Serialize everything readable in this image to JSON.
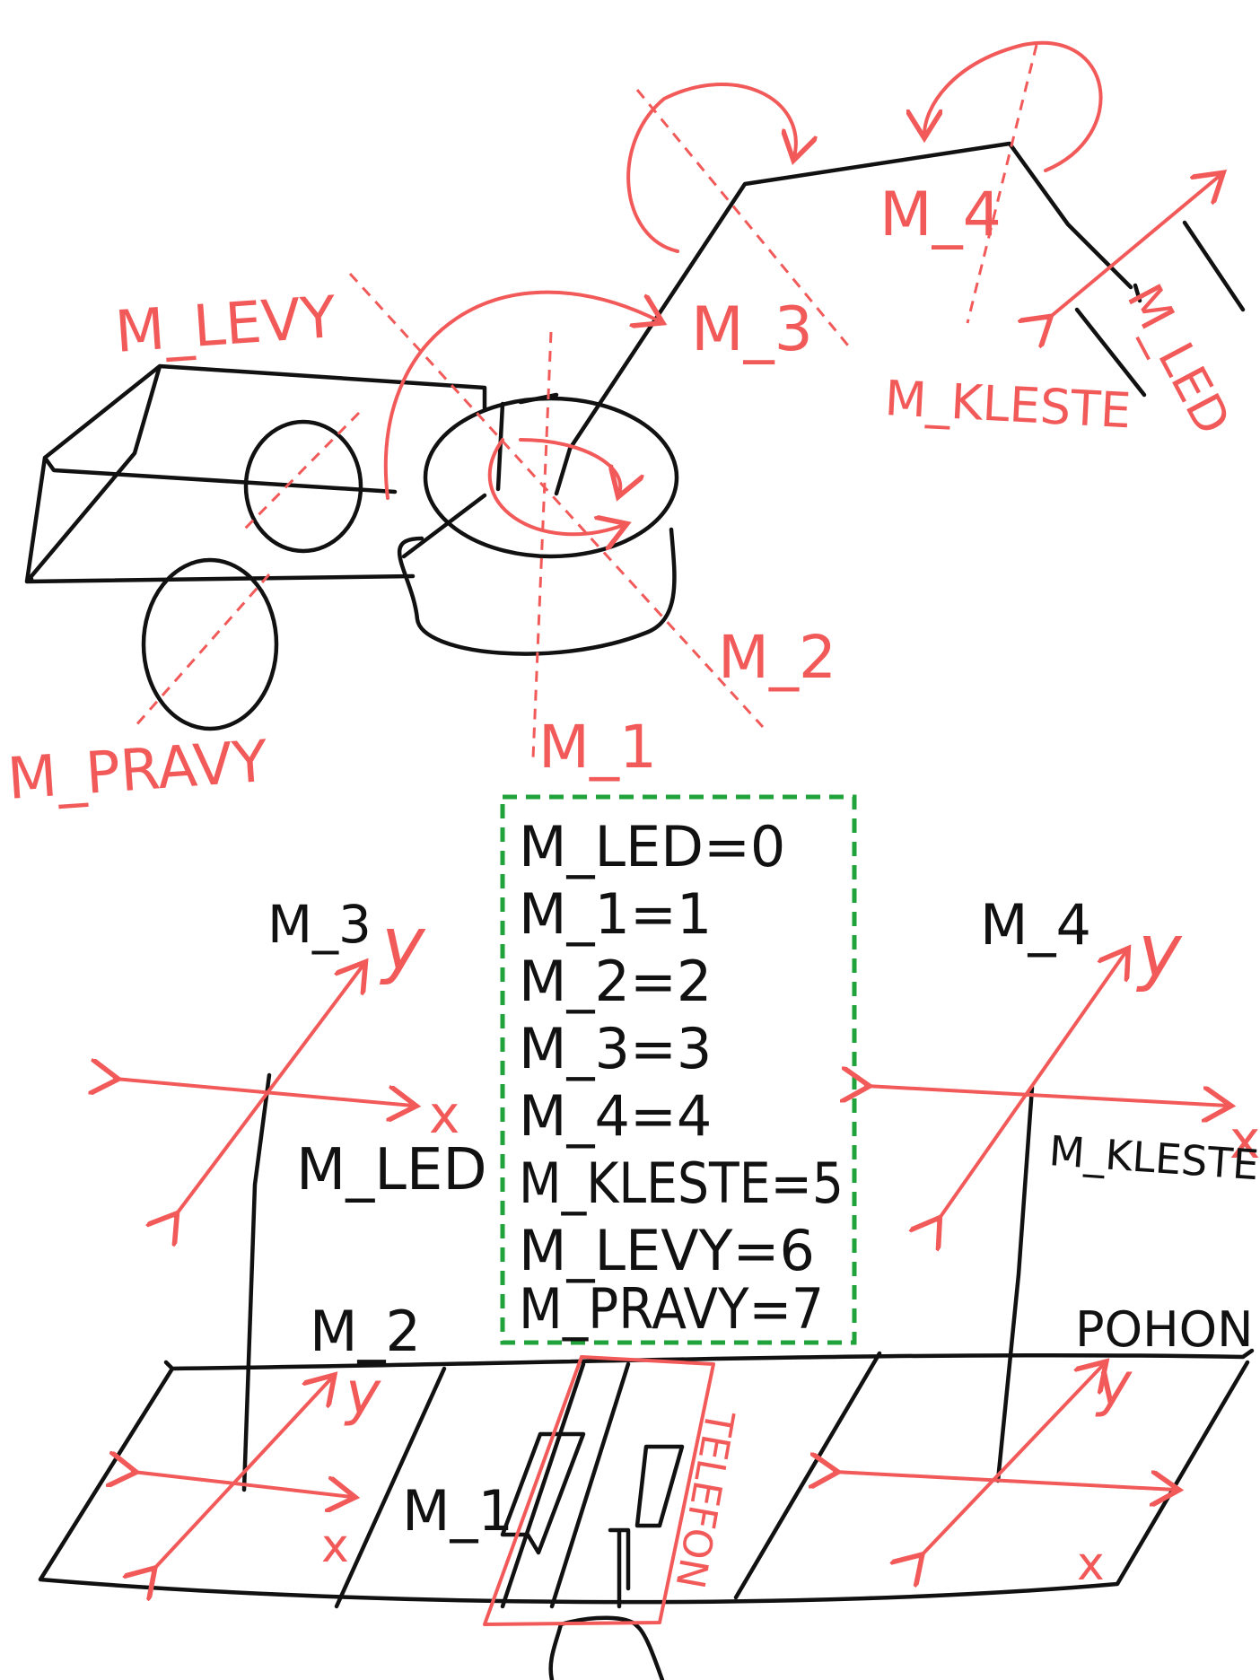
{
  "colors": {
    "ink": "#111111",
    "red": "#f25a5a",
    "green": "#1fa33a"
  },
  "robot_labels": {
    "m_levy": "M_LEVY",
    "m_pravy": "M_PRAVY",
    "m_1": "M_1",
    "m_2": "M_2",
    "m_3": "M_3",
    "m_4": "M_4",
    "m_kleste": "M_KLESTE",
    "m_led": "M_LED"
  },
  "motor_map": [
    "M_LED=0",
    "M_1=1",
    "M_2=2",
    "M_3=3",
    "M_4=4",
    "M_KLESTE=5",
    "M_LEVY=6",
    "M_PRAVY=7"
  ],
  "controller": {
    "left_stick_top": "M_3",
    "left_button": "M_LED",
    "right_stick_top": "M_4",
    "right_button": "M_KLESTE",
    "left_stick_bottom": "M_2",
    "right_top": "POHON",
    "center_left": "M_1",
    "phone": "TELEFON",
    "axis_x": "x",
    "axis_y": "y"
  }
}
